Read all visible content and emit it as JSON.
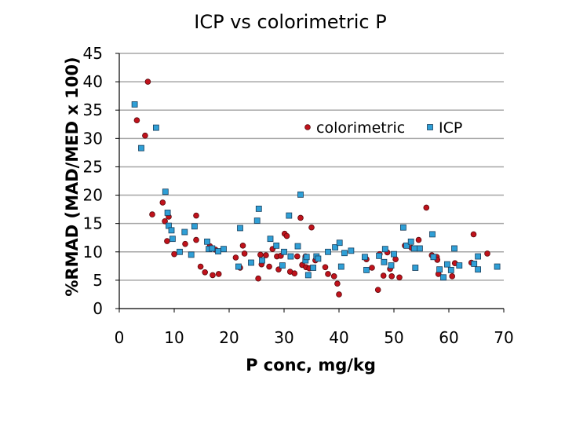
{
  "chart_data": {
    "type": "scatter",
    "title": "ICP vs colorimetric P",
    "xlabel": "P conc, mg/kg",
    "ylabel": "%RMAD (MAD/MED x 100)",
    "xlim": [
      0,
      70
    ],
    "ylim": [
      0,
      45
    ],
    "xticks": [
      "0",
      "10",
      "20",
      "30",
      "40",
      "50",
      "60",
      "70"
    ],
    "yticks": [
      "0",
      "5",
      "10",
      "15",
      "20",
      "25",
      "30",
      "35",
      "40",
      "45"
    ],
    "grid": "horizontal",
    "legend_position": "top-right",
    "colors": {
      "colorimetric": "#c0121b",
      "ICP": "#2f9fd6",
      "grid": "#a6a6a6"
    },
    "series": [
      {
        "name": "colorimetric",
        "marker": "circle",
        "points": [
          [
            3.2,
            33.2
          ],
          [
            4.7,
            30.5
          ],
          [
            5.2,
            40.0
          ],
          [
            6.0,
            16.6
          ],
          [
            7.9,
            18.7
          ],
          [
            8.3,
            15.4
          ],
          [
            8.7,
            11.9
          ],
          [
            9.0,
            16.2
          ],
          [
            10.0,
            9.6
          ],
          [
            12.0,
            11.4
          ],
          [
            14.0,
            16.4
          ],
          [
            14.0,
            12.1
          ],
          [
            14.8,
            7.4
          ],
          [
            15.6,
            6.4
          ],
          [
            16.5,
            11.0
          ],
          [
            17.0,
            5.9
          ],
          [
            17.5,
            10.4
          ],
          [
            18.1,
            6.1
          ],
          [
            21.2,
            9.0
          ],
          [
            22.0,
            7.2
          ],
          [
            22.5,
            11.1
          ],
          [
            22.8,
            9.7
          ],
          [
            25.3,
            5.3
          ],
          [
            25.7,
            9.5
          ],
          [
            25.9,
            7.8
          ],
          [
            26.7,
            9.4
          ],
          [
            27.3,
            7.4
          ],
          [
            27.9,
            10.5
          ],
          [
            28.7,
            9.2
          ],
          [
            29.0,
            6.9
          ],
          [
            29.4,
            9.3
          ],
          [
            30.1,
            13.2
          ],
          [
            30.5,
            12.8
          ],
          [
            31.1,
            6.5
          ],
          [
            31.9,
            6.2
          ],
          [
            32.4,
            9.2
          ],
          [
            33.0,
            16.0
          ],
          [
            33.3,
            7.7
          ],
          [
            33.9,
            9.2
          ],
          [
            34.0,
            7.3
          ],
          [
            34.6,
            7.1
          ],
          [
            35.0,
            14.3
          ],
          [
            35.7,
            8.5
          ],
          [
            37.5,
            7.3
          ],
          [
            38.0,
            6.1
          ],
          [
            39.1,
            5.7
          ],
          [
            39.7,
            4.4
          ],
          [
            40.0,
            2.5
          ],
          [
            45.0,
            8.7
          ],
          [
            46.0,
            7.2
          ],
          [
            47.1,
            3.3
          ],
          [
            47.4,
            9.6
          ],
          [
            48.1,
            5.8
          ],
          [
            48.8,
            9.9
          ],
          [
            49.3,
            7.0
          ],
          [
            49.6,
            5.7
          ],
          [
            50.3,
            8.7
          ],
          [
            51.0,
            5.5
          ],
          [
            52.0,
            11.1
          ],
          [
            53.2,
            10.7
          ],
          [
            54.5,
            12.1
          ],
          [
            55.9,
            17.8
          ],
          [
            56.9,
            9.4
          ],
          [
            57.8,
            9.1
          ],
          [
            57.9,
            8.6
          ],
          [
            58.1,
            6.1
          ],
          [
            60.6,
            5.7
          ],
          [
            61.1,
            8.0
          ],
          [
            64.1,
            8.1
          ],
          [
            64.5,
            13.1
          ],
          [
            67.0,
            9.7
          ]
        ]
      },
      {
        "name": "ICP",
        "marker": "square",
        "points": [
          [
            2.8,
            36.0
          ],
          [
            4.0,
            28.3
          ],
          [
            6.7,
            31.9
          ],
          [
            8.4,
            20.6
          ],
          [
            8.8,
            16.9
          ],
          [
            9.0,
            14.6
          ],
          [
            9.5,
            13.8
          ],
          [
            9.7,
            12.3
          ],
          [
            11.0,
            10.0
          ],
          [
            11.9,
            13.5
          ],
          [
            13.1,
            9.5
          ],
          [
            13.7,
            14.5
          ],
          [
            16.0,
            11.8
          ],
          [
            16.3,
            10.5
          ],
          [
            16.9,
            10.6
          ],
          [
            18.0,
            10.1
          ],
          [
            19.0,
            10.5
          ],
          [
            21.7,
            7.4
          ],
          [
            22.0,
            14.2
          ],
          [
            24.0,
            8.1
          ],
          [
            25.1,
            15.5
          ],
          [
            25.4,
            17.6
          ],
          [
            26.0,
            8.5
          ],
          [
            27.5,
            12.3
          ],
          [
            28.6,
            11.1
          ],
          [
            29.7,
            7.6
          ],
          [
            30.0,
            10.0
          ],
          [
            30.9,
            16.4
          ],
          [
            31.2,
            9.2
          ],
          [
            32.5,
            11.0
          ],
          [
            33.0,
            20.1
          ],
          [
            33.9,
            8.5
          ],
          [
            34.1,
            9.1
          ],
          [
            34.4,
            5.9
          ],
          [
            35.3,
            7.2
          ],
          [
            35.9,
            9.2
          ],
          [
            36.2,
            8.8
          ],
          [
            38.0,
            10.0
          ],
          [
            39.3,
            10.8
          ],
          [
            40.1,
            11.6
          ],
          [
            40.4,
            7.4
          ],
          [
            41.0,
            9.8
          ],
          [
            42.2,
            10.2
          ],
          [
            44.7,
            9.1
          ],
          [
            45.0,
            6.8
          ],
          [
            47.3,
            9.3
          ],
          [
            48.2,
            8.2
          ],
          [
            48.4,
            10.5
          ],
          [
            49.5,
            7.6
          ],
          [
            50.0,
            9.6
          ],
          [
            51.7,
            14.3
          ],
          [
            52.3,
            11.1
          ],
          [
            53.1,
            11.8
          ],
          [
            53.7,
            10.6
          ],
          [
            53.9,
            7.2
          ],
          [
            54.7,
            10.6
          ],
          [
            57.0,
            13.1
          ],
          [
            57.2,
            9.1
          ],
          [
            58.3,
            6.9
          ],
          [
            59.0,
            5.5
          ],
          [
            59.7,
            7.8
          ],
          [
            60.4,
            6.8
          ],
          [
            61.0,
            10.6
          ],
          [
            61.9,
            7.6
          ],
          [
            64.6,
            7.9
          ],
          [
            65.3,
            9.2
          ],
          [
            65.3,
            6.9
          ],
          [
            68.8,
            7.4
          ]
        ]
      }
    ]
  }
}
